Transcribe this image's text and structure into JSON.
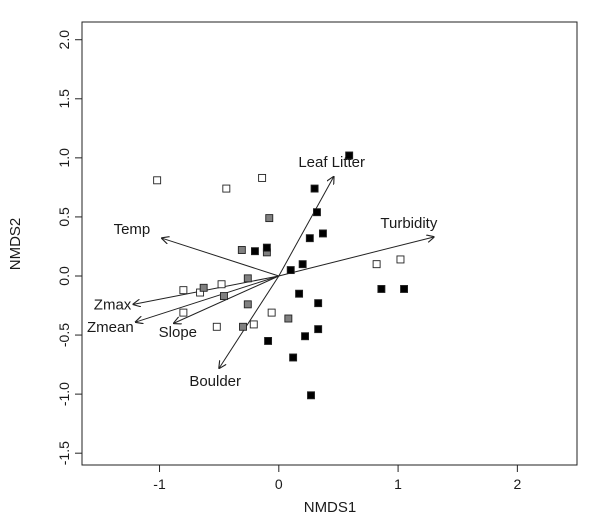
{
  "chart_data": {
    "type": "scatter",
    "title": "",
    "xlabel": "NMDS1",
    "ylabel": "NMDS2",
    "xlim": [
      -1.65,
      2.5
    ],
    "ylim": [
      -1.6,
      2.15
    ],
    "x_ticks": [
      -1,
      0,
      1,
      2
    ],
    "y_ticks": [
      -1.5,
      -1.0,
      -0.5,
      0.0,
      0.5,
      1.0,
      1.5,
      2.0
    ],
    "x_tick_labels": [
      "-1",
      "0",
      "1",
      "2"
    ],
    "y_tick_labels": [
      "-1.5",
      "-1.0",
      "-0.5",
      "0.0",
      "0.5",
      "1.0",
      "1.5",
      "2.0"
    ],
    "grid": false,
    "series": [
      {
        "marker": "open-square",
        "fill": "#ffffff",
        "points": [
          [
            -1.02,
            0.81
          ],
          [
            -0.44,
            0.74
          ],
          [
            -0.14,
            0.83
          ],
          [
            -0.8,
            -0.12
          ],
          [
            -0.66,
            -0.14
          ],
          [
            -0.48,
            -0.07
          ],
          [
            -0.8,
            -0.31
          ],
          [
            -0.52,
            -0.43
          ],
          [
            -0.21,
            -0.41
          ],
          [
            -0.06,
            -0.31
          ],
          [
            0.82,
            0.1
          ],
          [
            1.02,
            0.14
          ]
        ]
      },
      {
        "marker": "gray-square",
        "fill": "#808080",
        "points": [
          [
            -0.08,
            0.49
          ],
          [
            -0.31,
            0.22
          ],
          [
            -0.1,
            0.2
          ],
          [
            -0.63,
            -0.1
          ],
          [
            -0.46,
            -0.17
          ],
          [
            -0.26,
            -0.02
          ],
          [
            -0.26,
            -0.24
          ],
          [
            -0.3,
            -0.43
          ],
          [
            0.08,
            -0.36
          ]
        ]
      },
      {
        "marker": "filled-square",
        "fill": "#000000",
        "points": [
          [
            0.59,
            1.02
          ],
          [
            0.3,
            0.74
          ],
          [
            0.32,
            0.54
          ],
          [
            0.37,
            0.36
          ],
          [
            0.26,
            0.32
          ],
          [
            -0.2,
            0.21
          ],
          [
            -0.1,
            0.24
          ],
          [
            0.2,
            0.1
          ],
          [
            0.1,
            0.05
          ],
          [
            0.17,
            -0.15
          ],
          [
            0.33,
            -0.23
          ],
          [
            0.33,
            -0.45
          ],
          [
            0.22,
            -0.51
          ],
          [
            -0.09,
            -0.55
          ],
          [
            0.12,
            -0.69
          ],
          [
            0.27,
            -1.01
          ],
          [
            0.86,
            -0.11
          ],
          [
            1.05,
            -0.11
          ]
        ]
      }
    ],
    "vectors": [
      {
        "label": "Leaf Litter",
        "x": 0.46,
        "y": 0.84
      },
      {
        "label": "Turbidity",
        "x": 1.3,
        "y": 0.33
      },
      {
        "label": "Temp",
        "x": -0.98,
        "y": 0.32
      },
      {
        "label": "Zmax",
        "x": -1.22,
        "y": -0.24
      },
      {
        "label": "Zmean",
        "x": -1.2,
        "y": -0.39
      },
      {
        "label": "Slope",
        "x": -0.88,
        "y": -0.4
      },
      {
        "label": "Boulder",
        "x": -0.5,
        "y": -0.78
      }
    ]
  }
}
